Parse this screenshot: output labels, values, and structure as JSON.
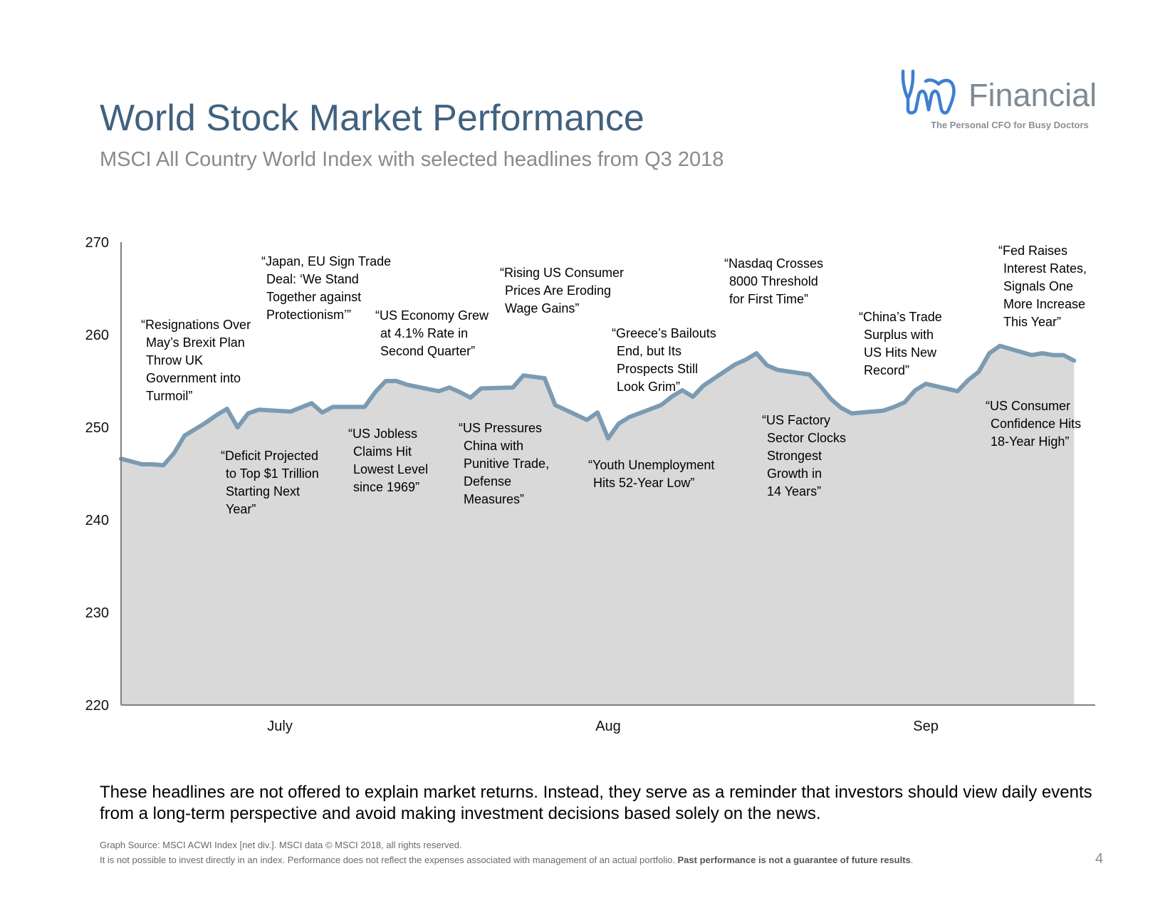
{
  "header": {
    "title": "World Stock Market Performance",
    "subtitle": "MSCI All Country World Index with selected headlines from Q3 2018"
  },
  "logo": {
    "icon": "tooth-stethoscope-icon",
    "word": "Financial",
    "tagline": "The Personal CFO for Busy Doctors",
    "colors": {
      "mark": "#3f7fd0",
      "word": "#7f8a93"
    }
  },
  "chart_data": {
    "type": "area",
    "ylim": [
      220,
      270
    ],
    "yticks": [
      220,
      230,
      240,
      250,
      260,
      270
    ],
    "ytick_labels": [
      "220",
      "230",
      "240",
      "250",
      "260",
      "270"
    ],
    "month_labels": [
      {
        "label": "July",
        "day": 8
      },
      {
        "label": "Aug",
        "day": 39
      },
      {
        "label": "Sep",
        "day": 69
      }
    ],
    "x_range": [
      -7,
      85
    ],
    "colors": {
      "line": "#7b9bb2",
      "fill": "#d9d9d9",
      "axis": "#808080"
    },
    "series": [
      {
        "points": [
          [
            -7,
            246.6
          ],
          [
            -5,
            246.0
          ],
          [
            -4,
            246.0
          ],
          [
            -3,
            245.9
          ],
          [
            -2,
            247.2
          ],
          [
            -1,
            249.1
          ],
          [
            1,
            250.5
          ],
          [
            2,
            251.3
          ],
          [
            3,
            252.0
          ],
          [
            4,
            250.0
          ],
          [
            5,
            251.5
          ],
          [
            6,
            251.9
          ],
          [
            9,
            251.7
          ],
          [
            11,
            252.6
          ],
          [
            12,
            251.6
          ],
          [
            13,
            252.2
          ],
          [
            16,
            252.2
          ],
          [
            17,
            253.8
          ],
          [
            18,
            255.0
          ],
          [
            19,
            255.0
          ],
          [
            20,
            254.6
          ],
          [
            23,
            253.9
          ],
          [
            24,
            254.3
          ],
          [
            25,
            253.8
          ],
          [
            26,
            253.2
          ],
          [
            27,
            254.2
          ],
          [
            30,
            254.3
          ],
          [
            31,
            255.6
          ],
          [
            33,
            255.3
          ],
          [
            34,
            252.4
          ],
          [
            37,
            250.8
          ],
          [
            38,
            251.6
          ],
          [
            39,
            248.8
          ],
          [
            40,
            250.4
          ],
          [
            41,
            251.1
          ],
          [
            44,
            252.4
          ],
          [
            45,
            253.3
          ],
          [
            46,
            254.0
          ],
          [
            47,
            253.3
          ],
          [
            48,
            254.5
          ],
          [
            51,
            256.8
          ],
          [
            52,
            257.3
          ],
          [
            53,
            258.0
          ],
          [
            54,
            256.7
          ],
          [
            55,
            256.2
          ],
          [
            58,
            255.7
          ],
          [
            59,
            254.5
          ],
          [
            60,
            253.1
          ],
          [
            61,
            252.1
          ],
          [
            62,
            251.5
          ],
          [
            65,
            251.8
          ],
          [
            66,
            252.2
          ],
          [
            67,
            252.7
          ],
          [
            68,
            254.0
          ],
          [
            69,
            254.7
          ],
          [
            72,
            253.9
          ],
          [
            73,
            255.1
          ],
          [
            74,
            256.0
          ],
          [
            75,
            258.0
          ],
          [
            76,
            258.8
          ],
          [
            79,
            257.8
          ],
          [
            80,
            258.0
          ],
          [
            81,
            257.8
          ],
          [
            82,
            257.8
          ],
          [
            83,
            257.2
          ]
        ]
      }
    ],
    "annotations": [
      {
        "lines": [
          "“Resignations Over",
          "May’s Brexit Plan",
          "Throw UK",
          "Government into",
          "Turmoil”"
        ]
      },
      {
        "lines": [
          "“Deficit Projected",
          "to Top $1 Trillion",
          "Starting Next",
          "Year”"
        ]
      },
      {
        "lines": [
          "“Japan, EU Sign Trade",
          "Deal: ‘We Stand",
          "Together against",
          "Protectionism’”"
        ]
      },
      {
        "lines": [
          "“US Jobless",
          "Claims Hit",
          "Lowest Level",
          "since 1969”"
        ]
      },
      {
        "lines": [
          "“US Economy Grew",
          "at 4.1% Rate in",
          "Second Quarter”"
        ]
      },
      {
        "lines": [
          "“US Pressures",
          "China with",
          "Punitive Trade,",
          "Defense",
          "Measures”"
        ]
      },
      {
        "lines": [
          "“Rising US Consumer",
          "Prices Are Eroding",
          "Wage Gains”"
        ]
      },
      {
        "lines": [
          "“Youth Unemployment",
          "Hits 52-Year Low”"
        ]
      },
      {
        "lines": [
          "“Greece’s Bailouts",
          "End, but Its",
          "Prospects Still",
          "Look Grim”"
        ]
      },
      {
        "lines": [
          "“Nasdaq Crosses",
          "8000 Threshold",
          "for First Time”"
        ]
      },
      {
        "lines": [
          "“US Factory",
          "Sector Clocks",
          "Strongest",
          "Growth in",
          "14 Years”"
        ]
      },
      {
        "lines": [
          "“China’s Trade",
          "Surplus with",
          "US Hits New",
          "Record”"
        ]
      },
      {
        "lines": [
          "“Fed Raises",
          "Interest Rates,",
          "Signals One",
          "More Increase",
          "This Year”"
        ]
      },
      {
        "lines": [
          "“US Consumer",
          "Confidence Hits",
          "18-Year High”"
        ]
      }
    ]
  },
  "footer": {
    "note": "These headlines are not offered to explain market returns. Instead, they serve as a reminder that investors should view daily events from a long-term perspective and avoid making investment decisions based solely on the news.",
    "source": "Graph Source: MSCI ACWI Index [net div.]. MSCI data © MSCI 2018, all rights reserved.",
    "disclaimer_plain": "It is not possible to invest directly in an index. Performance does not reflect the expenses associated with management of an actual portfolio. ",
    "disclaimer_bold": "Past performance is not a guarantee of future results",
    "disclaimer_end": ".",
    "page_number": "4"
  }
}
